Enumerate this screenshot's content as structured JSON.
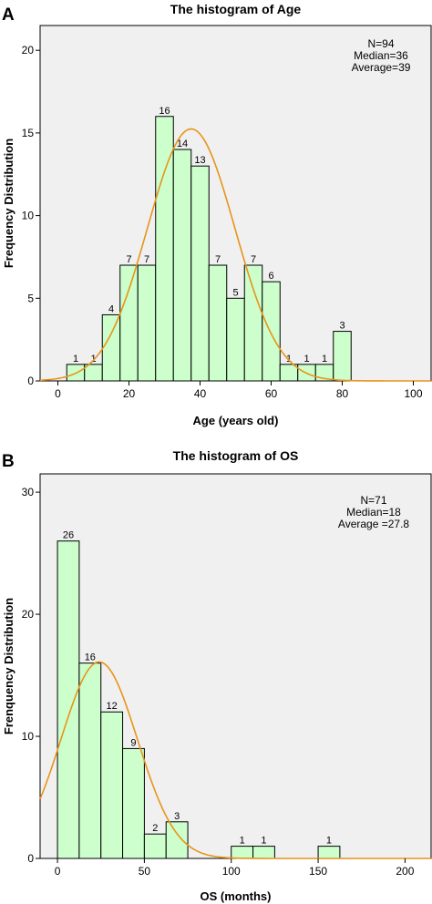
{
  "colors": {
    "plot_bg": "#f0f0f0",
    "bar_fill": "#ccffcc",
    "bar_stroke": "#000000",
    "curve": "#e8941a",
    "axis": "#000000"
  },
  "chart_data": [
    {
      "type": "bar",
      "panel_letter": "A",
      "title": "The histogram of Age",
      "xlabel": "Age (years old)",
      "ylabel": "Frequency Distribution",
      "xlim": [
        -5,
        105
      ],
      "ylim": [
        0,
        21.5
      ],
      "xticks": [
        0,
        20,
        40,
        60,
        80,
        100
      ],
      "yticks": [
        0,
        5,
        10,
        15,
        20
      ],
      "grid": false,
      "bin_width": 5,
      "bins": [
        {
          "start": 2.5,
          "value": 1
        },
        {
          "start": 7.5,
          "value": 1
        },
        {
          "start": 12.5,
          "value": 4
        },
        {
          "start": 17.5,
          "value": 7
        },
        {
          "start": 22.5,
          "value": 7
        },
        {
          "start": 27.5,
          "value": 16
        },
        {
          "start": 32.5,
          "value": 14
        },
        {
          "start": 37.5,
          "value": 13
        },
        {
          "start": 42.5,
          "value": 7
        },
        {
          "start": 47.5,
          "value": 5
        },
        {
          "start": 52.5,
          "value": 7
        },
        {
          "start": 57.5,
          "value": 6
        },
        {
          "start": 62.5,
          "value": 1
        },
        {
          "start": 67.5,
          "value": 1
        },
        {
          "start": 72.5,
          "value": 1
        },
        {
          "start": 77.5,
          "value": 3
        }
      ],
      "normal_curve": {
        "mean": 37.5,
        "sd": 12.3,
        "n": 94
      },
      "stats": [
        "N=94",
        "Median=36",
        "Average=39"
      ]
    },
    {
      "type": "bar",
      "panel_letter": "B",
      "title": "The histogram of OS",
      "xlabel": "OS (months)",
      "ylabel": "Frenquency Distribution",
      "xlim": [
        -10,
        215
      ],
      "ylim": [
        0,
        31.5
      ],
      "xticks": [
        0,
        50,
        100,
        150,
        200
      ],
      "yticks": [
        0,
        10,
        20,
        30
      ],
      "grid": false,
      "bin_width": 12.5,
      "bins": [
        {
          "start": 0,
          "value": 26
        },
        {
          "start": 12.5,
          "value": 16
        },
        {
          "start": 25,
          "value": 12
        },
        {
          "start": 37.5,
          "value": 9
        },
        {
          "start": 50,
          "value": 2
        },
        {
          "start": 62.5,
          "value": 3
        },
        {
          "start": 100,
          "value": 1
        },
        {
          "start": 112.5,
          "value": 1
        },
        {
          "start": 150,
          "value": 1
        }
      ],
      "normal_curve": {
        "mean": 24,
        "sd": 22,
        "n": 71
      },
      "stats": [
        "N=71",
        "Median=18",
        "Average =27.8"
      ]
    }
  ]
}
